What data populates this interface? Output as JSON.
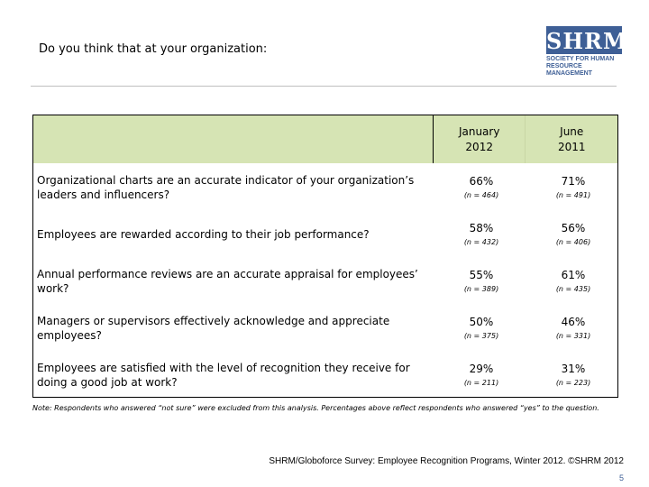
{
  "title": "Do you think that at your organization:",
  "logo": {
    "brand": "SHRM",
    "line1": "SOCIETY FOR HUMAN",
    "line2": "RESOURCE MANAGEMENT"
  },
  "table": {
    "columns": [
      {
        "label": "January\n2012"
      },
      {
        "label": "June\n2011"
      }
    ],
    "rows": [
      {
        "question": "Organizational charts are an accurate indicator of your organization’s leaders and influencers?",
        "jan_pct": "66%",
        "jan_n": "(n = 464)",
        "jun_pct": "71%",
        "jun_n": "(n = 491)"
      },
      {
        "question": "Employees are rewarded according to their job performance?",
        "jan_pct": "58%",
        "jan_n": "(n = 432)",
        "jun_pct": "56%",
        "jun_n": "(n = 406)"
      },
      {
        "question": "Annual performance reviews are an accurate appraisal for employees’ work?",
        "jan_pct": "55%",
        "jan_n": "(n = 389)",
        "jun_pct": "61%",
        "jun_n": "(n = 435)"
      },
      {
        "question": "Managers or supervisors effectively acknowledge and appreciate employees?",
        "jan_pct": "50%",
        "jan_n": "(n = 375)",
        "jun_pct": "46%",
        "jun_n": "(n = 331)"
      },
      {
        "question": "Employees are satisfied with the level of recognition they receive for doing a good job at work?",
        "jan_pct": "29%",
        "jan_n": "(n = 211)",
        "jun_pct": "31%",
        "jun_n": "(n = 223)"
      }
    ]
  },
  "note": "Note: Respondents who answered “not sure” were excluded from this analysis. Percentages above reflect respondents who answered “yes” to the question.",
  "source": "SHRM/Globoforce Survey: Employee Recognition Programs, Winter 2012. ©SHRM 2012",
  "page_number": "5"
}
